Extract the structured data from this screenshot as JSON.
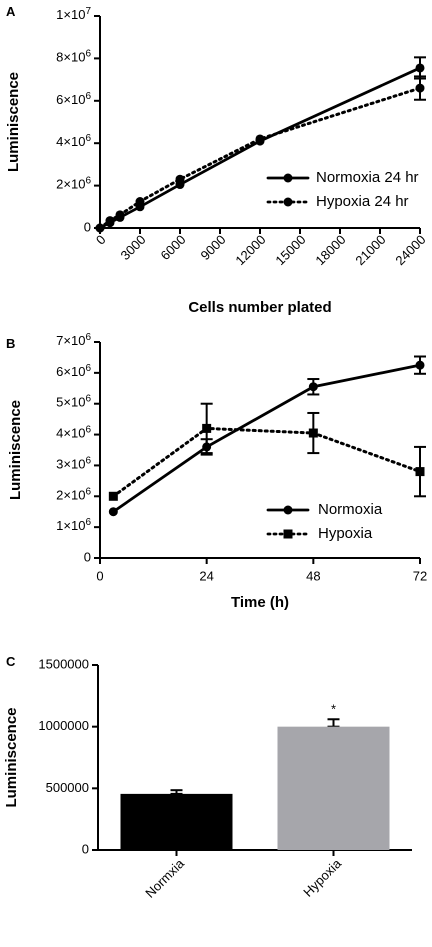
{
  "chart_data": [
    {
      "panel": "A",
      "type": "line",
      "xlabel": "Cells number plated",
      "ylabel": "Luminiscence",
      "xlim": [
        0,
        24000
      ],
      "ylim": [
        0,
        10000000
      ],
      "xticks": [
        "0",
        "3000",
        "6000",
        "9000",
        "12000",
        "15000",
        "18000",
        "21000",
        "24000"
      ],
      "yticks": [
        "0",
        "2×10⁶",
        "4×10⁶",
        "6×10⁶",
        "8×10⁶",
        "1×10⁷"
      ],
      "legend_position": "center-right",
      "series": [
        {
          "name": "Normoxia 24 hr",
          "style": "solid",
          "marker": "circle",
          "x": [
            0,
            750,
            1500,
            3000,
            6000,
            12000,
            24000
          ],
          "y": [
            0,
            250000,
            500000,
            1000000,
            2050000,
            4100000,
            7550000
          ],
          "err": [
            0,
            0,
            0,
            0,
            0,
            0,
            500000
          ]
        },
        {
          "name": "Hypoxia 24 hr",
          "style": "dotted",
          "marker": "circle",
          "x": [
            0,
            750,
            1500,
            3000,
            6000,
            12000,
            24000
          ],
          "y": [
            0,
            350000,
            620000,
            1250000,
            2300000,
            4200000,
            6600000
          ],
          "err": [
            0,
            0,
            0,
            0,
            0,
            0,
            550000
          ]
        }
      ]
    },
    {
      "panel": "B",
      "type": "line",
      "xlabel": "Time (h)",
      "ylabel": "Luminiscence",
      "xlim": [
        0,
        72
      ],
      "ylim": [
        0,
        7000000
      ],
      "xticks": [
        "0",
        "24",
        "48",
        "72"
      ],
      "yticks": [
        "0",
        "1×10⁶",
        "2×10⁶",
        "3×10⁶",
        "4×10⁶",
        "5×10⁶",
        "6×10⁶",
        "7×10⁶"
      ],
      "legend_position": "bottom-right",
      "series": [
        {
          "name": "Normoxia",
          "style": "solid",
          "marker": "circle",
          "x": [
            3,
            24,
            48,
            72
          ],
          "y": [
            1500000,
            3600000,
            5550000,
            6250000
          ],
          "err": [
            0,
            250000,
            250000,
            280000
          ]
        },
        {
          "name": "Hypoxia",
          "style": "dotted",
          "marker": "square",
          "x": [
            3,
            24,
            48,
            72
          ],
          "y": [
            2000000,
            4200000,
            4050000,
            2800000
          ],
          "err": [
            0,
            800000,
            650000,
            800000
          ]
        }
      ]
    },
    {
      "panel": "C",
      "type": "bar",
      "ylabel": "Luminiscence",
      "ylim": [
        0,
        1500000
      ],
      "yticks": [
        "0",
        "500000",
        "1000000",
        "1500000"
      ],
      "categories": [
        "Normxia",
        "Hypoxia"
      ],
      "values": [
        455000,
        1000000
      ],
      "errors": [
        30000,
        60000
      ],
      "colors": [
        "#000000",
        "#a6a6ab"
      ],
      "annotations": [
        "",
        "*"
      ]
    }
  ]
}
